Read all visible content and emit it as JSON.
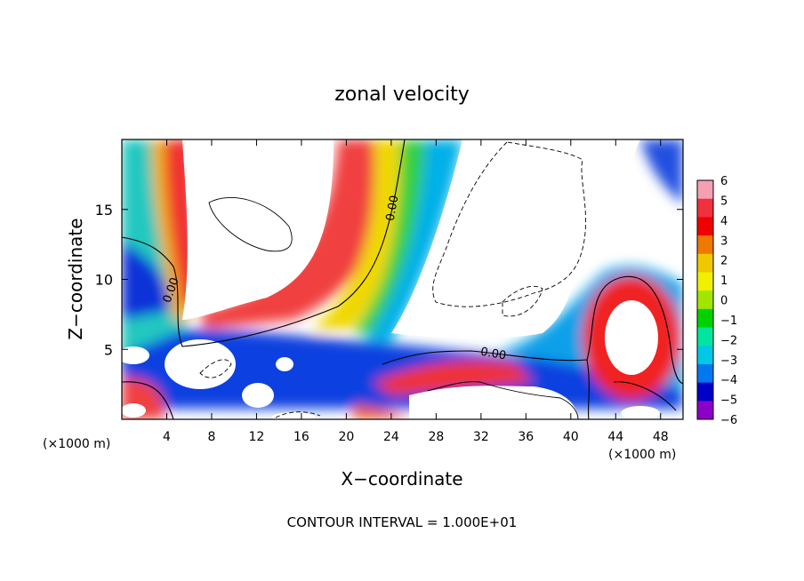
{
  "chart_data": {
    "type": "heatmap",
    "title": "zonal velocity",
    "xlabel": "X−coordinate",
    "ylabel": "Z−coordinate",
    "x_unit_left": "(×1000 m)",
    "x_unit_right": "(×1000 m)",
    "footer": "CONTOUR INTERVAL = 1.000E+01",
    "xlim": [
      0,
      50
    ],
    "ylim": [
      0,
      20
    ],
    "xticks": [
      4,
      8,
      12,
      16,
      20,
      24,
      28,
      32,
      36,
      40,
      44,
      48
    ],
    "yticks": [
      5,
      10,
      15
    ],
    "contour_label": "0.00",
    "colorbar": {
      "min": -6,
      "max": 6,
      "ticks": [
        6,
        5,
        4,
        3,
        2,
        1,
        0,
        -1,
        -2,
        -3,
        -4,
        -5,
        -6
      ],
      "tick_labels": [
        "6",
        "5",
        "4",
        "3",
        "2",
        "1",
        "0",
        "−1",
        "−2",
        "−3",
        "−4",
        "−5",
        "−6"
      ],
      "colors": [
        "#f4a0b4",
        "#f0303c",
        "#f00000",
        "#f07800",
        "#f0c800",
        "#f0f000",
        "#a0e600",
        "#00d200",
        "#00e6a0",
        "#00c8e6",
        "#0078f0",
        "#0000c8",
        "#8c00c8"
      ]
    },
    "features": [
      {
        "kind": "saturated_positive",
        "x": 14,
        "z": 15,
        "value": 10
      },
      {
        "kind": "saturated_negative",
        "x": 36,
        "z": 15,
        "value": -10
      },
      {
        "kind": "saturated_positive",
        "x": 44,
        "z": 5.5,
        "value": 10
      },
      {
        "kind": "saturated_positive",
        "x": 32,
        "z": 1.5,
        "value": 10
      },
      {
        "kind": "shear_band",
        "x": 20,
        "z": 3.5,
        "value": -5
      }
    ]
  }
}
